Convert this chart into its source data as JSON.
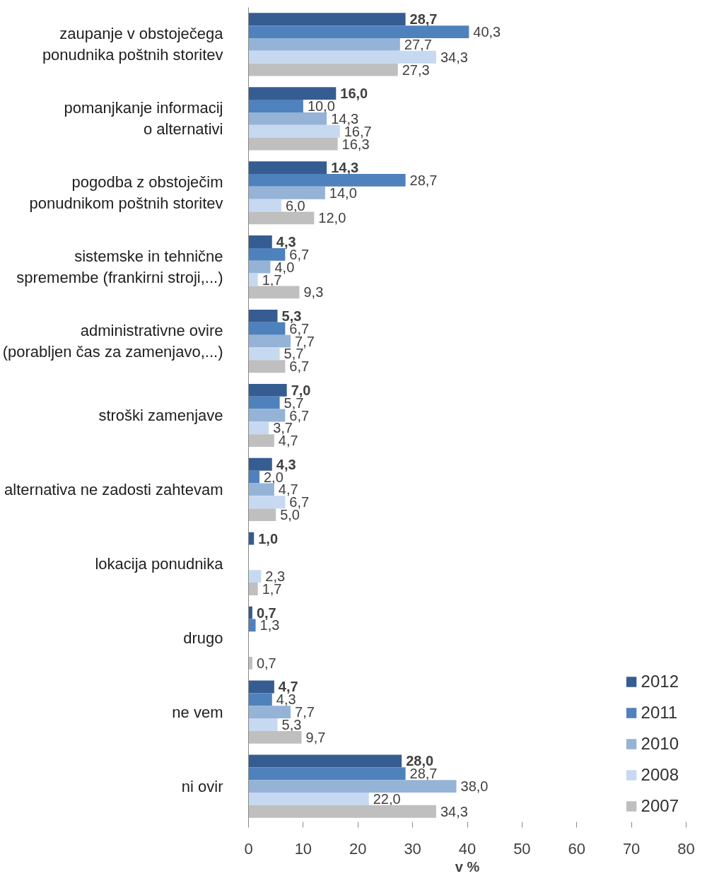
{
  "chart_data": {
    "type": "bar",
    "orientation": "horizontal",
    "xlabel": "v %",
    "xlim": [
      0,
      80
    ],
    "xticks": [
      0,
      10,
      20,
      30,
      40,
      50,
      60,
      70,
      80
    ],
    "grid": false,
    "legend": "bottom right",
    "categories": [
      "zaupanje v obstoječega\nponudnika poštnih storitev",
      "pomanjkanje informacij\no alternativi",
      "pogodba z obstoječim\nponudnikom poštnih storitev",
      "sistemske in tehnične\nspremembe (frankirni stroji,...)",
      "administrativne ovire\n(porabljen čas za zamenjavo,...)",
      "stroški zamenjave",
      "alternativa ne zadosti zahtevam",
      "lokacija ponudnika",
      "drugo",
      "ne vem",
      "ni ovir"
    ],
    "series": [
      {
        "name": "2012",
        "color": "#355d91",
        "values": [
          28.7,
          16.0,
          14.3,
          4.3,
          5.3,
          7.0,
          4.3,
          1.0,
          0.7,
          4.7,
          28.0
        ],
        "value_labels": [
          "28,7",
          "16,0",
          "14,3",
          "4,3",
          "5,3",
          "7,0",
          "4,3",
          "1,0",
          "0,7",
          "4,7",
          "28,0"
        ]
      },
      {
        "name": "2011",
        "color": "#4f81bd",
        "values": [
          40.3,
          10.0,
          28.7,
          6.7,
          6.7,
          5.7,
          2.0,
          null,
          1.3,
          4.3,
          28.7
        ],
        "value_labels": [
          "40,3",
          "10,0",
          "28,7",
          "6,7",
          "6,7",
          "5,7",
          "2,0",
          null,
          "1,3",
          "4,3",
          "28,7"
        ]
      },
      {
        "name": "2010",
        "color": "#95b3d7",
        "values": [
          27.7,
          14.3,
          14.0,
          4.0,
          7.7,
          6.7,
          4.7,
          null,
          null,
          7.7,
          38.0
        ],
        "value_labels": [
          "27,7",
          "14,3",
          "14,0",
          "4,0",
          "7,7",
          "6,7",
          "4,7",
          null,
          null,
          "7,7",
          "38,0"
        ]
      },
      {
        "name": "2008",
        "color": "#c6d9f1",
        "values": [
          34.3,
          16.7,
          6.0,
          1.7,
          5.7,
          3.7,
          6.7,
          2.3,
          null,
          5.3,
          22.0
        ],
        "value_labels": [
          "34,3",
          "16,7",
          "6,0",
          "1,7",
          "5,7",
          "3,7",
          "6,7",
          "2,3",
          null,
          "5,3",
          "22,0"
        ]
      },
      {
        "name": "2007",
        "color": "#bfbfbf",
        "values": [
          27.3,
          16.3,
          12.0,
          9.3,
          6.7,
          4.7,
          5.0,
          1.7,
          0.7,
          9.7,
          34.3
        ],
        "value_labels": [
          "27,3",
          "16,3",
          "12,0",
          "9,3",
          "6,7",
          "4,7",
          "5,0",
          "1,7",
          "0,7",
          "9,7",
          "34,3"
        ]
      }
    ]
  }
}
